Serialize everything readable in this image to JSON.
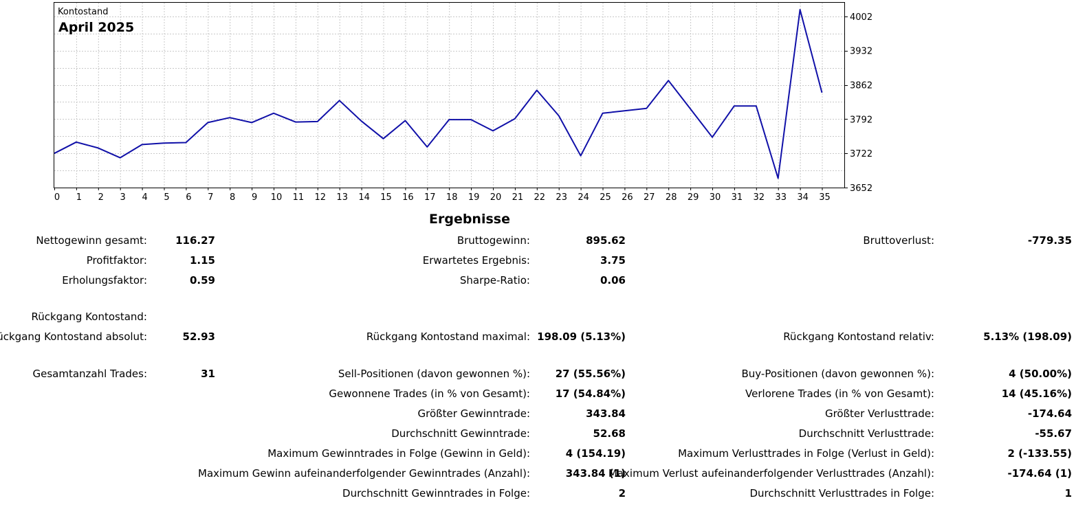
{
  "chart_data": {
    "type": "line",
    "label": "Kontostand",
    "title": "April 2025",
    "x": [
      0,
      1,
      2,
      3,
      4,
      5,
      6,
      7,
      8,
      9,
      10,
      11,
      12,
      13,
      14,
      15,
      16,
      17,
      18,
      19,
      20,
      21,
      22,
      23,
      24,
      25,
      26,
      27,
      28,
      29,
      30,
      31,
      32,
      33,
      34,
      35
    ],
    "y": [
      3722,
      3745,
      3733,
      3713,
      3740,
      3743,
      3744,
      3785,
      3795,
      3785,
      3804,
      3786,
      3787,
      3830,
      3788,
      3752,
      3789,
      3735,
      3791,
      3791,
      3768,
      3793,
      3851,
      3799,
      3717,
      3804,
      3809,
      3814,
      3871,
      3813,
      3755,
      3819,
      3819,
      3671,
      4016,
      3846
    ],
    "x_ticks": [
      "0",
      "1",
      "2",
      "3",
      "4",
      "5",
      "6",
      "7",
      "8",
      "9",
      "10",
      "11",
      "12",
      "13",
      "14",
      "15",
      "16",
      "17",
      "18",
      "19",
      "20",
      "21",
      "22",
      "23",
      "24",
      "25",
      "26",
      "27",
      "28",
      "29",
      "30",
      "31",
      "32",
      "33",
      "34",
      "35"
    ],
    "y_ticks": [
      "4002",
      "3932",
      "3862",
      "3792",
      "3722",
      "3652"
    ],
    "ylim": [
      3652,
      4030
    ],
    "grid": true,
    "line_color": "#1010a8"
  },
  "results": {
    "heading": "Ergebnisse",
    "rows": [
      {
        "l1": "Nettogewinn gesamt:",
        "v1": "116.27",
        "l2": "Bruttogewinn:",
        "v2": "895.62",
        "l3": "Bruttoverlust:",
        "v3": "-779.35"
      },
      {
        "l1": "Profitfaktor:",
        "v1": "1.15",
        "l2": "Erwartetes Ergebnis:",
        "v2": "3.75",
        "l3": "",
        "v3": ""
      },
      {
        "l1": "Erholungsfaktor:",
        "v1": "0.59",
        "l2": "Sharpe-Ratio:",
        "v2": "0.06",
        "l3": "",
        "v3": ""
      },
      {
        "l1": "Rückgang Kontostand:",
        "v1": "",
        "l2": "",
        "v2": "",
        "l3": "",
        "v3": ""
      },
      {
        "l1": "Rückgang Kontostand absolut:",
        "v1": "52.93",
        "l2": "Rückgang Kontostand maximal:",
        "v2": "198.09 (5.13%)",
        "l3": "Rückgang Kontostand relativ:",
        "v3": "5.13% (198.09)"
      },
      {
        "l1": "Gesamtanzahl Trades:",
        "v1": "31",
        "l2": "Sell-Positionen (davon gewonnen %):",
        "v2": "27 (55.56%)",
        "l3": "Buy-Positionen (davon gewonnen %):",
        "v3": "4 (50.00%)"
      },
      {
        "l1": "",
        "v1": "",
        "l2": "Gewonnene Trades (in % von Gesamt):",
        "v2": "17 (54.84%)",
        "l3": "Verlorene Trades (in % von Gesamt):",
        "v3": "14 (45.16%)"
      },
      {
        "l1": "",
        "v1": "",
        "l2": "Größter Gewinntrade:",
        "v2": "343.84",
        "l3": "Größter Verlusttrade:",
        "v3": "-174.64"
      },
      {
        "l1": "",
        "v1": "",
        "l2": "Durchschnitt Gewinntrade:",
        "v2": "52.68",
        "l3": "Durchschnitt Verlusttrade:",
        "v3": "-55.67"
      },
      {
        "l1": "",
        "v1": "",
        "l2": "Maximum Gewinntrades in Folge (Gewinn in Geld):",
        "v2": "4 (154.19)",
        "l3": "Maximum Verlusttrades in Folge (Verlust in Geld):",
        "v3": "2 (-133.55)"
      },
      {
        "l1": "",
        "v1": "",
        "l2": "Maximum Gewinn aufeinanderfolgender Gewinntrades (Anzahl):",
        "v2": "343.84 (1)",
        "l3": "Maximum Verlust aufeinanderfolgender Verlusttrades (Anzahl):",
        "v3": "-174.64 (1)"
      },
      {
        "l1": "",
        "v1": "",
        "l2": "Durchschnitt Gewinntrades in Folge:",
        "v2": "2",
        "l3": "Durchschnitt Verlusttrades in Folge:",
        "v3": "1"
      }
    ]
  }
}
